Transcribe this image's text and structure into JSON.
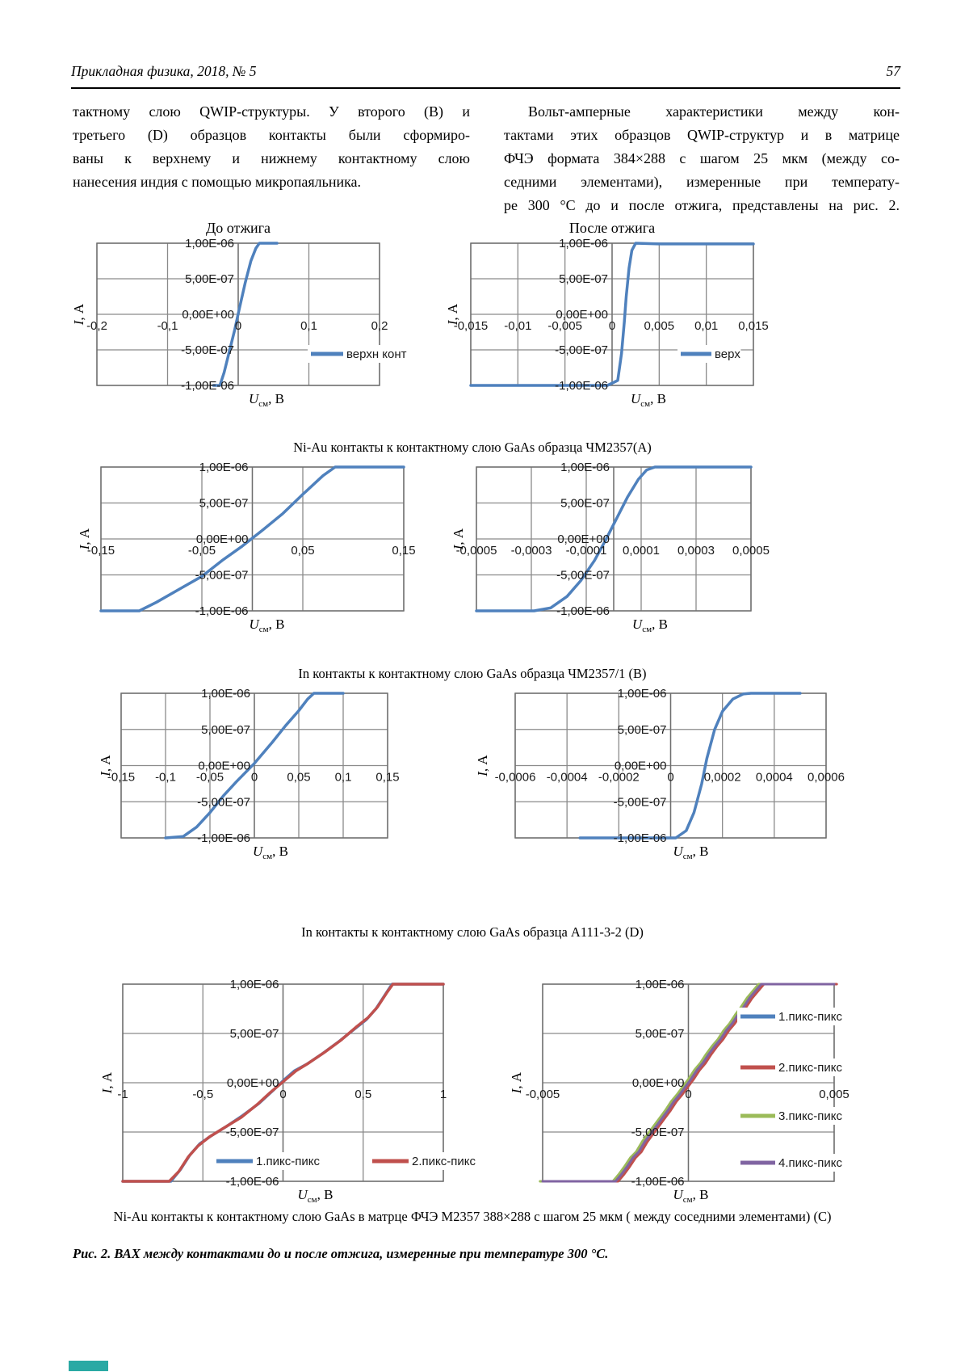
{
  "header": {
    "journal": "Прикладная физика, 2018, № 5",
    "page_number": "57"
  },
  "body": {
    "left_lines": [
      "тактному слою QWIP-структуры. У второго (B) и",
      "третьего (D) образцов контакты были сформиро-",
      "ваны к верхнему и нижнему контактному слою",
      "нанесения индия с помощью микропаяльника."
    ],
    "right_lines": [
      "Вольт-амперные характеристики между кон-",
      "тактами этих образцов QWIP-структур и в матрице",
      "ФЧЭ формата 384×288 с шагом 25 мкм (между со-",
      "седними элементами), измеренные при температу-",
      "ре 300 °С до и после отжига, представлены на рис. 2."
    ]
  },
  "captions": {
    "row1": "Ni-Au контакты к контактному слою GaAs образца ЧМ2357(А)",
    "row2": "In контакты к контактному слою GaAs образца ЧМ2357/1 (В)",
    "row3": "In контакты к контактному слою GaAs образца А111-3-2 (D)",
    "row4": "Ni-Au контакты к контактному слою GaAs в матрце ФЧЭ М2357 388×288 с шагом 25 мкм ( между соседними элементами) (С)",
    "figure": "Рис. 2. ВАХ между контактами до и после отжига, измеренные при температуре 300 °С."
  },
  "colors": {
    "blue": "#4F81BD",
    "red": "#C0504D",
    "green": "#9BBB59",
    "purple": "#8064A2",
    "grid": "#8a8a8a",
    "axis": "#6e6e6e",
    "teal_marker": "#2AA9A4"
  },
  "axis_titles": {
    "x": {
      "pre": "U",
      "sub": "см",
      "post": ", В"
    },
    "y": {
      "pre": "I",
      "post": ", А"
    }
  },
  "y_ticks": [
    {
      "v": 1,
      "label": "1,00E-06"
    },
    {
      "v": 0.5,
      "label": "5,00E-07"
    },
    {
      "v": 0,
      "label": "0,00E+00"
    },
    {
      "v": -0.5,
      "label": "-5,00E-07"
    },
    {
      "v": -1,
      "label": "-1,00E-06"
    }
  ],
  "chart_data": [
    {
      "id": "c1",
      "type": "line",
      "title": "До отжига",
      "xlabel": "Uсм, В",
      "ylabel": "I, А",
      "xlim": [
        -0.2,
        0.2
      ],
      "ylim_amps": [
        -1e-06,
        1e-06
      ],
      "x_grid": [
        -0.2,
        -0.1,
        0,
        0.1,
        0.2
      ],
      "x_ticks": [
        {
          "v": -0.2,
          "label": "-0,2"
        },
        {
          "v": -0.1,
          "label": "-0,1"
        },
        {
          "v": 0,
          "label": "0"
        },
        {
          "v": 0.1,
          "label": "0,1"
        },
        {
          "v": 0.2,
          "label": "0,2"
        }
      ],
      "series": [
        {
          "name": "верхн конт",
          "color": "blue",
          "points": [
            [
              -0.035,
              -1
            ],
            [
              -0.026,
              -1
            ],
            [
              -0.02,
              -0.82
            ],
            [
              -0.012,
              -0.5
            ],
            [
              -0.005,
              -0.22
            ],
            [
              0.002,
              0.1
            ],
            [
              0.01,
              0.45
            ],
            [
              0.018,
              0.75
            ],
            [
              0.025,
              0.93
            ],
            [
              0.03,
              1
            ],
            [
              0.055,
              1
            ]
          ]
        }
      ],
      "legend": [
        {
          "label": "верхн конт",
          "color": "blue"
        }
      ]
    },
    {
      "id": "c2",
      "type": "line",
      "title": "После отжига",
      "xlabel": "Uсм, В",
      "ylabel": "I, А",
      "xlim": [
        -0.015,
        0.015
      ],
      "ylim_amps": [
        -1e-06,
        1e-06
      ],
      "x_grid": [
        -0.015,
        -0.01,
        -0.005,
        0,
        0.005,
        0.01,
        0.015
      ],
      "x_ticks": [
        {
          "v": -0.015,
          "label": "-0,015"
        },
        {
          "v": -0.01,
          "label": "-0,01"
        },
        {
          "v": -0.005,
          "label": "-0,005"
        },
        {
          "v": 0,
          "label": "0"
        },
        {
          "v": 0.005,
          "label": "0,005"
        },
        {
          "v": 0.01,
          "label": "0,01"
        },
        {
          "v": 0.015,
          "label": "0,015"
        }
      ],
      "series": [
        {
          "name": "верх",
          "color": "blue",
          "points": [
            [
              -0.015,
              -1
            ],
            [
              -0.0005,
              -1
            ],
            [
              0.0006,
              -0.93
            ],
            [
              0.001,
              -0.55
            ],
            [
              0.0013,
              -0.1
            ],
            [
              0.0015,
              0.25
            ],
            [
              0.0018,
              0.65
            ],
            [
              0.0021,
              0.9
            ],
            [
              0.0025,
              1
            ],
            [
              0.005,
              0.99
            ],
            [
              0.015,
              0.99
            ]
          ]
        }
      ],
      "legend": [
        {
          "label": "верх",
          "color": "blue"
        }
      ]
    },
    {
      "id": "c3",
      "type": "line",
      "title": "",
      "xlabel": "Uсм, В",
      "ylabel": "I, А",
      "xlim": [
        -0.15,
        0.15
      ],
      "ylim_amps": [
        -1e-06,
        1e-06
      ],
      "x_grid": [
        -0.15,
        -0.05,
        0,
        0.05,
        0.15
      ],
      "x_ticks": [
        {
          "v": -0.15,
          "label": "-0,15"
        },
        {
          "v": -0.05,
          "label": "-0,05"
        },
        {
          "v": 0.05,
          "label": "0,05"
        },
        {
          "v": 0.15,
          "label": "0,15"
        }
      ],
      "series": [
        {
          "name": "",
          "color": "blue",
          "points": [
            [
              -0.15,
              -1
            ],
            [
              -0.112,
              -1
            ],
            [
              -0.095,
              -0.88
            ],
            [
              -0.07,
              -0.68
            ],
            [
              -0.05,
              -0.52
            ],
            [
              -0.03,
              -0.3
            ],
            [
              -0.01,
              -0.1
            ],
            [
              0.01,
              0.12
            ],
            [
              0.03,
              0.35
            ],
            [
              0.05,
              0.62
            ],
            [
              0.07,
              0.88
            ],
            [
              0.082,
              1
            ],
            [
              0.15,
              1
            ]
          ]
        }
      ]
    },
    {
      "id": "c4",
      "type": "line",
      "title": "",
      "xlabel": "Uсм, В",
      "ylabel": "I, А",
      "xlim": [
        -0.0005,
        0.0005
      ],
      "ylim_amps": [
        -1e-06,
        1e-06
      ],
      "x_grid": [
        -0.0005,
        -0.0003,
        -0.0001,
        0,
        0.0001,
        0.0003,
        0.0005
      ],
      "x_ticks": [
        {
          "v": -0.0005,
          "label": "-0,0005"
        },
        {
          "v": -0.0003,
          "label": "-0,0003"
        },
        {
          "v": -0.0001,
          "label": "-0,0001"
        },
        {
          "v": 0.0001,
          "label": "0,0001"
        },
        {
          "v": 0.0003,
          "label": "0,0003"
        },
        {
          "v": 0.0005,
          "label": "0,0005"
        }
      ],
      "series": [
        {
          "name": "",
          "color": "blue",
          "points": [
            [
              -0.0005,
              -1
            ],
            [
              -0.00029,
              -1
            ],
            [
              -0.00023,
              -0.96
            ],
            [
              -0.00017,
              -0.8
            ],
            [
              -0.00012,
              -0.58
            ],
            [
              -7e-05,
              -0.3
            ],
            [
              -3e-05,
              -0.02
            ],
            [
              1e-05,
              0.28
            ],
            [
              5e-05,
              0.58
            ],
            [
              9e-05,
              0.83
            ],
            [
              0.00012,
              0.96
            ],
            [
              0.00015,
              1
            ],
            [
              0.0005,
              1
            ]
          ]
        }
      ]
    },
    {
      "id": "c5",
      "type": "line",
      "title": "",
      "xlabel": "Uсм, В",
      "ylabel": "I, А",
      "xlim": [
        -0.15,
        0.15
      ],
      "ylim_amps": [
        -1e-06,
        1e-06
      ],
      "x_grid": [
        -0.15,
        -0.1,
        -0.05,
        0,
        0.05,
        0.1,
        0.15
      ],
      "x_ticks": [
        {
          "v": -0.15,
          "label": "-0,15"
        },
        {
          "v": -0.1,
          "label": "-0,1"
        },
        {
          "v": -0.05,
          "label": "-0,05"
        },
        {
          "v": 0,
          "label": "0"
        },
        {
          "v": 0.05,
          "label": "0,05"
        },
        {
          "v": 0.1,
          "label": "0,1"
        },
        {
          "v": 0.15,
          "label": "0,15"
        }
      ],
      "series": [
        {
          "name": "",
          "color": "blue",
          "points": [
            [
              -0.1,
              -1
            ],
            [
              -0.08,
              -0.98
            ],
            [
              -0.065,
              -0.85
            ],
            [
              -0.05,
              -0.65
            ],
            [
              -0.035,
              -0.42
            ],
            [
              -0.02,
              -0.22
            ],
            [
              0,
              0.03
            ],
            [
              0.02,
              0.32
            ],
            [
              0.035,
              0.55
            ],
            [
              0.05,
              0.76
            ],
            [
              0.06,
              0.92
            ],
            [
              0.067,
              1
            ],
            [
              0.1,
              1
            ]
          ]
        }
      ]
    },
    {
      "id": "c6",
      "type": "line",
      "title": "",
      "xlabel": "Uсм, В",
      "ylabel": "I, А",
      "xlim": [
        -0.0006,
        0.0006
      ],
      "ylim_amps": [
        -1e-06,
        1e-06
      ],
      "x_grid": [
        -0.0006,
        -0.0004,
        -0.0002,
        0,
        0.0002,
        0.0004,
        0.0006
      ],
      "x_ticks": [
        {
          "v": -0.0006,
          "label": "-0,0006"
        },
        {
          "v": -0.0004,
          "label": "-0,0004"
        },
        {
          "v": -0.0002,
          "label": "-0,0002"
        },
        {
          "v": 0,
          "label": "0"
        },
        {
          "v": 0.0002,
          "label": "0,0002"
        },
        {
          "v": 0.0004,
          "label": "0,0004"
        },
        {
          "v": 0.0006,
          "label": "0,0006"
        }
      ],
      "series": [
        {
          "name": "",
          "color": "blue",
          "points": [
            [
              -0.00035,
              -1
            ],
            [
              2e-05,
              -1
            ],
            [
              6e-05,
              -0.9
            ],
            [
              9e-05,
              -0.65
            ],
            [
              0.00012,
              -0.25
            ],
            [
              0.00014,
              0.1
            ],
            [
              0.00017,
              0.5
            ],
            [
              0.0002,
              0.75
            ],
            [
              0.00024,
              0.92
            ],
            [
              0.00028,
              0.99
            ],
            [
              0.00031,
              1
            ],
            [
              0.0005,
              1
            ]
          ]
        }
      ]
    },
    {
      "id": "c7",
      "type": "line",
      "title": "",
      "xlabel": "Uсм, В",
      "ylabel": "I, А",
      "xlim": [
        -1,
        1
      ],
      "ylim_amps": [
        -1e-06,
        1e-06
      ],
      "x_grid": [
        -1,
        -0.5,
        0,
        0.5,
        1
      ],
      "x_ticks": [
        {
          "v": -1,
          "label": "-1"
        },
        {
          "v": -0.5,
          "label": "-0,5"
        },
        {
          "v": 0,
          "label": "0"
        },
        {
          "v": 0.5,
          "label": "0,5"
        },
        {
          "v": 1,
          "label": "1"
        }
      ],
      "series": [
        {
          "name": "1.пикс-пикс",
          "color": "blue",
          "points": [
            [
              -1,
              -1
            ],
            [
              -0.7,
              -1
            ],
            [
              -0.64,
              -0.88
            ],
            [
              -0.58,
              -0.73
            ],
            [
              -0.52,
              -0.62
            ],
            [
              -0.45,
              -0.54
            ],
            [
              -0.35,
              -0.44
            ],
            [
              -0.25,
              -0.33
            ],
            [
              -0.15,
              -0.21
            ],
            [
              -0.07,
              -0.09
            ],
            [
              0,
              0.02
            ],
            [
              0.07,
              0.12
            ],
            [
              0.15,
              0.19
            ],
            [
              0.25,
              0.3
            ],
            [
              0.35,
              0.42
            ],
            [
              0.45,
              0.55
            ],
            [
              0.52,
              0.64
            ],
            [
              0.58,
              0.75
            ],
            [
              0.64,
              0.9
            ],
            [
              0.68,
              1
            ],
            [
              1,
              1
            ]
          ]
        },
        {
          "name": "2.пикс-пикс",
          "color": "red",
          "points": [
            [
              -1,
              -1
            ],
            [
              -0.71,
              -1
            ],
            [
              -0.65,
              -0.9
            ],
            [
              -0.59,
              -0.75
            ],
            [
              -0.53,
              -0.64
            ],
            [
              -0.46,
              -0.55
            ],
            [
              -0.36,
              -0.45
            ],
            [
              -0.26,
              -0.35
            ],
            [
              -0.16,
              -0.22
            ],
            [
              -0.08,
              -0.1
            ],
            [
              0,
              0.01
            ],
            [
              0.08,
              0.12
            ],
            [
              0.16,
              0.2
            ],
            [
              0.26,
              0.31
            ],
            [
              0.36,
              0.43
            ],
            [
              0.46,
              0.57
            ],
            [
              0.53,
              0.66
            ],
            [
              0.59,
              0.77
            ],
            [
              0.65,
              0.92
            ],
            [
              0.685,
              1
            ],
            [
              1,
              1
            ]
          ]
        }
      ],
      "legend": [
        {
          "label": "1.пикс-пикс",
          "color": "blue"
        },
        {
          "label": "2.пикс-пикс",
          "color": "red"
        }
      ]
    },
    {
      "id": "c8",
      "type": "line",
      "title": "",
      "xlabel": "Uсм, В",
      "ylabel": "I, А",
      "xlim": [
        -0.005,
        0.005
      ],
      "ylim_amps": [
        -1e-06,
        1e-06
      ],
      "x_grid": [
        -0.005,
        0,
        0.005
      ],
      "x_ticks": [
        {
          "v": -0.005,
          "label": "-0,005"
        },
        {
          "v": 0,
          "label": "0"
        },
        {
          "v": 0.005,
          "label": "0,005"
        }
      ],
      "base_points": [
        [
          -0.005,
          -1
        ],
        [
          -0.0025,
          -1
        ],
        [
          -0.0023,
          -0.93
        ],
        [
          -0.0021,
          -0.85
        ],
        [
          -0.0019,
          -0.76
        ],
        [
          -0.0017,
          -0.7
        ],
        [
          -0.0015,
          -0.6
        ],
        [
          -0.0013,
          -0.52
        ],
        [
          -0.0011,
          -0.44
        ],
        [
          -0.0009,
          -0.36
        ],
        [
          -0.0007,
          -0.28
        ],
        [
          -0.0005,
          -0.19
        ],
        [
          -0.0003,
          -0.12
        ],
        [
          -0.0001,
          -0.04
        ],
        [
          0.0001,
          0.04
        ],
        [
          0.0003,
          0.13
        ],
        [
          0.0005,
          0.2
        ],
        [
          0.0007,
          0.29
        ],
        [
          0.0009,
          0.37
        ],
        [
          0.0011,
          0.44
        ],
        [
          0.0013,
          0.53
        ],
        [
          0.0015,
          0.6
        ],
        [
          0.0017,
          0.69
        ],
        [
          0.0019,
          0.77
        ],
        [
          0.0021,
          0.86
        ],
        [
          0.0023,
          0.93
        ],
        [
          0.0025,
          1
        ],
        [
          0.005,
          1
        ]
      ],
      "series": [
        {
          "name": "1.пикс-пикс",
          "color": "blue",
          "dx": 4e-05
        },
        {
          "name": "2.пикс-пикс",
          "color": "red",
          "dx": 9e-05
        },
        {
          "name": "3.пикс-пикс",
          "color": "green",
          "dx": -9e-05
        },
        {
          "name": "4.пикс-пикс",
          "color": "purple",
          "dx": 0
        }
      ],
      "legend": [
        {
          "label": "1.пикс-пикс",
          "color": "blue"
        },
        {
          "label": "2.пикс-пикс",
          "color": "red"
        },
        {
          "label": "3.пикс-пикс",
          "color": "green"
        },
        {
          "label": "4.пикс-пикс",
          "color": "purple"
        }
      ]
    }
  ]
}
